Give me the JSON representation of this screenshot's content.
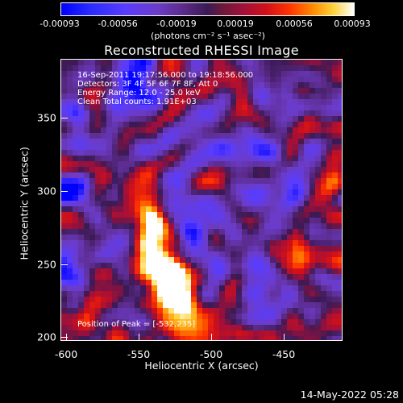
{
  "colorbar": {
    "ticks": [
      "-0.00093",
      "-0.00056",
      "-0.00019",
      "0.00019",
      "0.00056",
      "0.00093"
    ],
    "unit_label": "(photons cm⁻² s⁻¹ asec⁻²)"
  },
  "plot": {
    "title": "Reconstructed RHESSI Image",
    "info_lines": [
      "16-Sep-2011 19:17:56.000 to 19:18:56.000",
      "Detectors: 3F 4F 5F 6F 7F 8F, Att 0",
      "Energy Range: 12.0 - 25.0 keV",
      "Clean     Total counts: 1.91E+03"
    ],
    "peak_label": "Position of Peak = [-532,235]",
    "xlabel": "Heliocentric X (arcsec)",
    "ylabel": "Heliocentric Y (arcsec)",
    "x_ticks": [
      "-600",
      "-550",
      "-500",
      "-450"
    ],
    "y_ticks": [
      "350",
      "300",
      "250",
      "200"
    ]
  },
  "timestamp": "14-May-2022 05:28"
}
